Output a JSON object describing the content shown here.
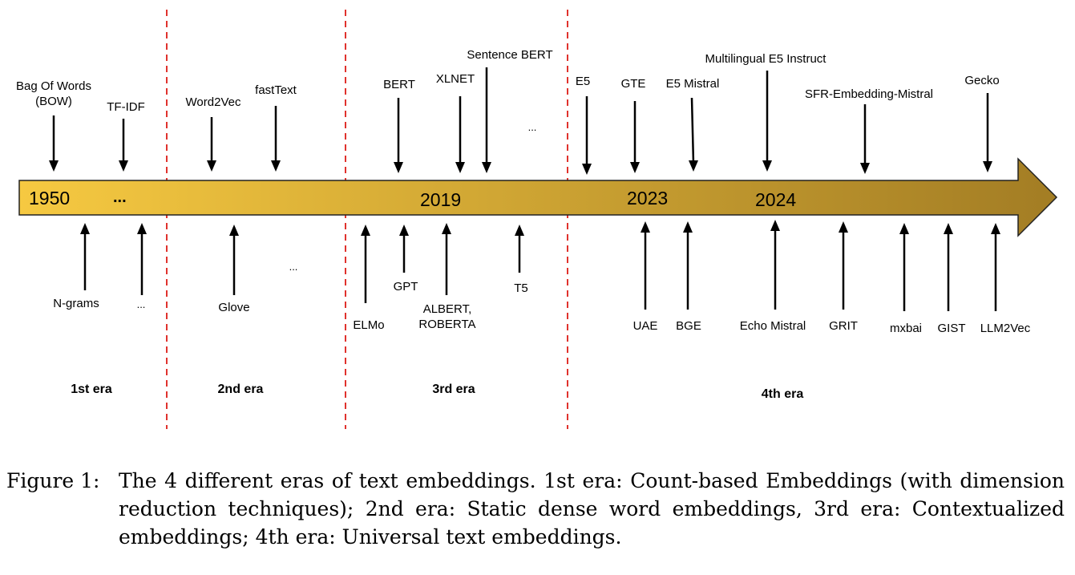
{
  "figure": {
    "timeline": {
      "years": [
        "1950",
        "2019",
        "2023",
        "2024"
      ],
      "bar_ellipsis": "...",
      "eras": [
        "1st era",
        "2nd era",
        "3rd era",
        "4th era"
      ],
      "above": [
        {
          "lines": [
            "Bag Of Words",
            "(BOW)"
          ]
        },
        {
          "lines": [
            "TF-IDF"
          ]
        },
        {
          "lines": [
            "Word2Vec"
          ]
        },
        {
          "lines": [
            "fastText"
          ]
        },
        {
          "lines": [
            "BERT"
          ]
        },
        {
          "lines": [
            "XLNET"
          ]
        },
        {
          "lines": [
            "Sentence BERT"
          ]
        },
        {
          "lines": [
            "..."
          ]
        },
        {
          "lines": [
            "E5"
          ]
        },
        {
          "lines": [
            "GTE"
          ]
        },
        {
          "lines": [
            "E5 Mistral"
          ]
        },
        {
          "lines": [
            "Multilingual E5 Instruct"
          ]
        },
        {
          "lines": [
            "SFR-Embedding-Mistral"
          ]
        },
        {
          "lines": [
            "Gecko"
          ]
        }
      ],
      "below": [
        {
          "lines": [
            "N-grams"
          ]
        },
        {
          "lines": [
            "..."
          ]
        },
        {
          "lines": [
            "Glove"
          ]
        },
        {
          "lines": [
            "..."
          ]
        },
        {
          "lines": [
            "ELMo"
          ]
        },
        {
          "lines": [
            "GPT"
          ]
        },
        {
          "lines": [
            "ALBERT,",
            "ROBERTA"
          ]
        },
        {
          "lines": [
            "T5"
          ]
        },
        {
          "lines": [
            "UAE"
          ]
        },
        {
          "lines": [
            "BGE"
          ]
        },
        {
          "lines": [
            "Echo Mistral"
          ]
        },
        {
          "lines": [
            "GRIT"
          ]
        },
        {
          "lines": [
            "mxbai"
          ]
        },
        {
          "lines": [
            "GIST"
          ]
        },
        {
          "lines": [
            "LLM2Vec"
          ]
        }
      ],
      "colors": {
        "bar_start": "#f6c941",
        "bar_end": "#a37d24",
        "bar_stroke": "#222222",
        "divider": "#e0322d",
        "arrow": "#000000"
      }
    },
    "caption": {
      "label": "Figure 1:",
      "text": "The 4 different eras of text embeddings. 1st era: Count-based Embeddings (with dimension reduction techniques); 2nd era: Static dense word embeddings, 3rd era: Contextualized embeddings; 4th era: Universal text embeddings."
    }
  }
}
